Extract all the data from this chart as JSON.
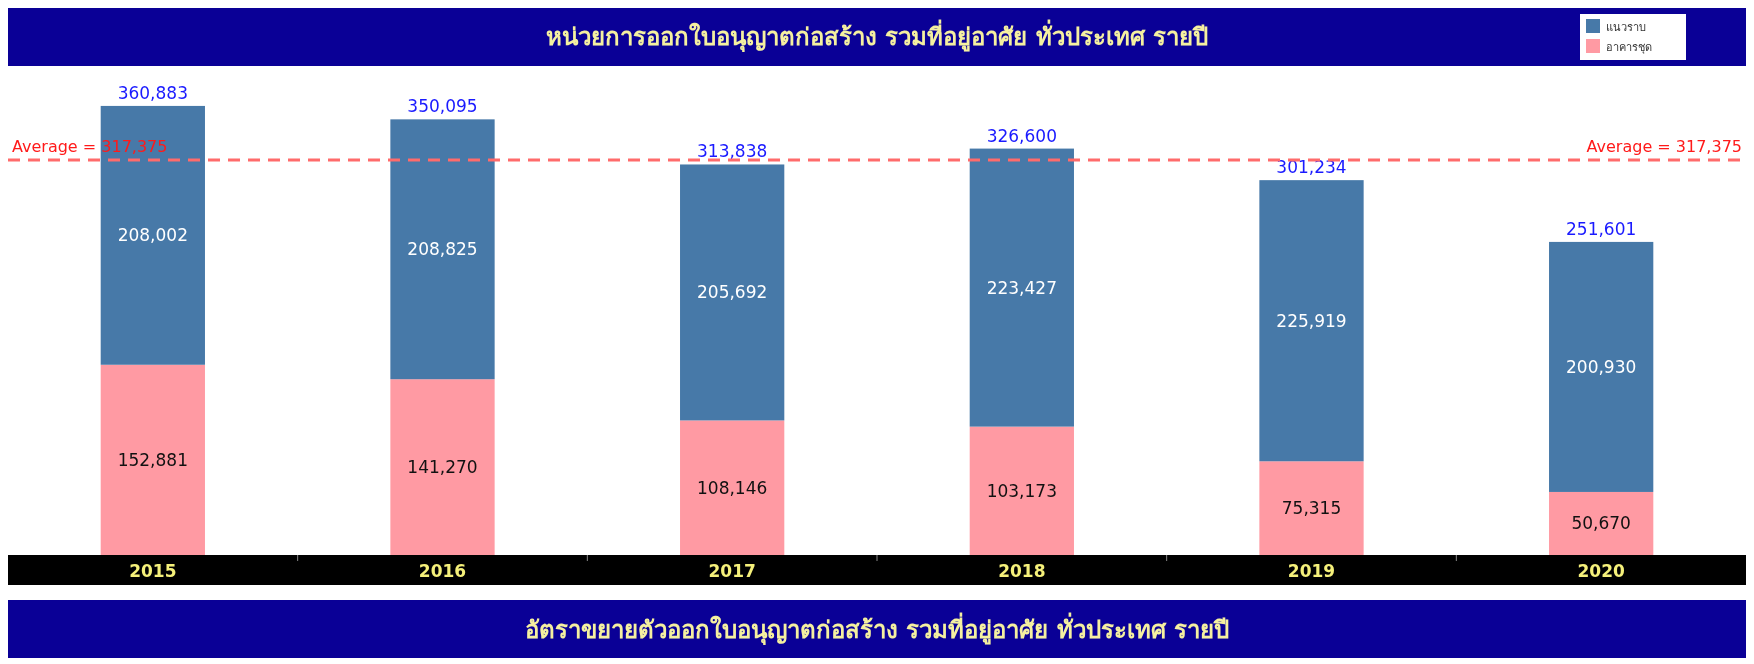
{
  "chart_data": {
    "type": "bar",
    "title": "หน่วยการออกใบอนุญาตก่อสร้าง รวมที่อยู่อาศัย ทั่วประเทศ รายปี",
    "categories": [
      "2015",
      "2016",
      "2017",
      "2018",
      "2019",
      "2020"
    ],
    "stacked": true,
    "series": [
      {
        "name": "อาคารชุด",
        "color": "#ff9aa3",
        "values": [
          152881,
          141270,
          108146,
          103173,
          75315,
          50670
        ],
        "value_labels": [
          "152,881",
          "141,270",
          "108,146",
          "103,173",
          "75,315",
          "50,670"
        ]
      },
      {
        "name": "แนวราบ",
        "color": "#4779a8",
        "values": [
          208002,
          208825,
          205692,
          223427,
          225919,
          200930
        ],
        "value_labels": [
          "208,002",
          "208,825",
          "205,692",
          "223,427",
          "225,919",
          "200,930"
        ]
      }
    ],
    "totals": [
      "360,883",
      "350,095",
      "313,838",
      "326,600",
      "301,234",
      "251,601"
    ],
    "ref_lines": [
      {
        "axis": "y",
        "value": 317375,
        "label": "Average = 317,375",
        "color": "#ff6b6b",
        "line_style": "dashed"
      }
    ],
    "legend": "top right",
    "annotations": [
      "อัตราขยายตัวออกใบอนุญาตก่อสร้าง รวมที่อยู่อาศัย ทั่วประเทศ รายปี"
    ]
  }
}
